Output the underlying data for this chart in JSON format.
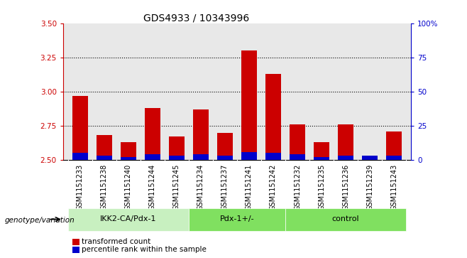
{
  "title": "GDS4933 / 10343996",
  "samples": [
    "GSM1151233",
    "GSM1151238",
    "GSM1151240",
    "GSM1151244",
    "GSM1151245",
    "GSM1151234",
    "GSM1151237",
    "GSM1151241",
    "GSM1151242",
    "GSM1151232",
    "GSM1151235",
    "GSM1151236",
    "GSM1151239",
    "GSM1151243"
  ],
  "red_values": [
    2.97,
    2.68,
    2.63,
    2.88,
    2.67,
    2.87,
    2.7,
    3.3,
    3.13,
    2.76,
    2.63,
    2.76,
    2.53,
    2.71
  ],
  "blue_pct": [
    5,
    3,
    2,
    4,
    3,
    4,
    3,
    6,
    5,
    4,
    2,
    3,
    3,
    3
  ],
  "group_defs": [
    {
      "label": "IKK2-CA/Pdx-1",
      "start": 0,
      "end": 4,
      "color": "#c8f0c0"
    },
    {
      "label": "Pdx-1+/-",
      "start": 5,
      "end": 8,
      "color": "#80e060"
    },
    {
      "label": "control",
      "start": 9,
      "end": 13,
      "color": "#80e060"
    }
  ],
  "ylim_left": [
    2.5,
    3.5
  ],
  "ylim_right": [
    0,
    100
  ],
  "yticks_left": [
    2.5,
    2.75,
    3.0,
    3.25,
    3.5
  ],
  "yticks_right": [
    0,
    25,
    50,
    75,
    100
  ],
  "ytick_labels_right": [
    "0",
    "25",
    "50",
    "75",
    "100%"
  ],
  "grid_lines": [
    2.75,
    3.0,
    3.25
  ],
  "left_color": "#cc0000",
  "right_color": "#0000cc",
  "bar_width": 0.65,
  "plot_bg": "#e8e8e8",
  "label_bg": "#d0d0d0",
  "legend_red": "transformed count",
  "legend_blue": "percentile rank within the sample",
  "xlabel_group": "genotype/variation",
  "title_fontsize": 10,
  "label_fontsize": 7,
  "tick_fontsize": 7.5
}
